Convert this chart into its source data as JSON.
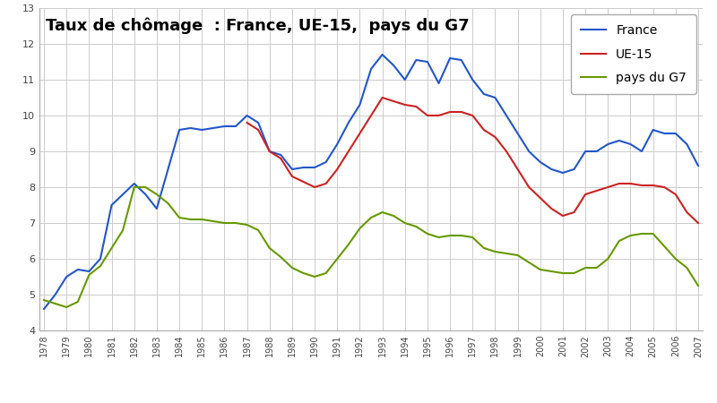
{
  "title": "Taux de chômage  : France, UE-15,  pays du G7",
  "years": [
    1978,
    1978.5,
    1979,
    1979.5,
    1980,
    1980.5,
    1981,
    1981.5,
    1982,
    1982.5,
    1983,
    1983.5,
    1984,
    1984.5,
    1985,
    1985.5,
    1986,
    1986.5,
    1987,
    1987.5,
    1988,
    1988.5,
    1989,
    1989.5,
    1990,
    1990.5,
    1991,
    1991.5,
    1992,
    1992.5,
    1993,
    1993.5,
    1994,
    1994.5,
    1995,
    1995.5,
    1996,
    1996.5,
    1997,
    1997.5,
    1998,
    1998.5,
    1999,
    1999.5,
    2000,
    2000.5,
    2001,
    2001.5,
    2002,
    2002.5,
    2003,
    2003.5,
    2004,
    2004.5,
    2005,
    2005.5,
    2006,
    2006.5,
    2007
  ],
  "france": [
    4.6,
    5.0,
    5.5,
    5.7,
    5.65,
    6.0,
    7.5,
    7.8,
    8.1,
    7.8,
    7.4,
    8.5,
    9.6,
    9.65,
    9.6,
    9.65,
    9.7,
    9.7,
    10.0,
    9.8,
    9.0,
    8.9,
    8.5,
    8.55,
    8.55,
    8.7,
    9.2,
    9.8,
    10.3,
    11.3,
    11.7,
    11.4,
    11.0,
    11.55,
    11.5,
    10.9,
    11.6,
    11.55,
    11.0,
    10.6,
    10.5,
    10.0,
    9.5,
    9.0,
    8.7,
    8.5,
    8.4,
    8.5,
    9.0,
    9.0,
    9.2,
    9.3,
    9.2,
    9.0,
    9.6,
    9.5,
    9.5,
    9.2,
    8.6
  ],
  "ue15": [
    null,
    null,
    null,
    null,
    null,
    null,
    null,
    null,
    null,
    null,
    null,
    null,
    null,
    null,
    null,
    null,
    null,
    null,
    9.8,
    9.6,
    9.0,
    8.8,
    8.3,
    8.15,
    8.0,
    8.1,
    8.5,
    9.0,
    9.5,
    10.0,
    10.5,
    10.4,
    10.3,
    10.25,
    10.0,
    10.0,
    10.1,
    10.1,
    10.0,
    9.6,
    9.4,
    9.0,
    8.5,
    8.0,
    7.7,
    7.4,
    7.2,
    7.3,
    7.8,
    7.9,
    8.0,
    8.1,
    8.1,
    8.05,
    8.05,
    8.0,
    7.8,
    7.3,
    7.0
  ],
  "g7": [
    4.85,
    4.75,
    4.65,
    4.8,
    5.55,
    5.8,
    6.3,
    6.8,
    8.0,
    8.0,
    7.8,
    7.55,
    7.15,
    7.1,
    7.1,
    7.05,
    7.0,
    7.0,
    6.95,
    6.8,
    6.3,
    6.05,
    5.75,
    5.6,
    5.5,
    5.6,
    6.0,
    6.4,
    6.85,
    7.15,
    7.3,
    7.2,
    7.0,
    6.9,
    6.7,
    6.6,
    6.65,
    6.65,
    6.6,
    6.3,
    6.2,
    6.15,
    6.1,
    5.9,
    5.7,
    5.65,
    5.6,
    5.6,
    5.75,
    5.75,
    6.0,
    6.5,
    6.65,
    6.7,
    6.7,
    6.35,
    6.0,
    5.75,
    5.25
  ],
  "france_color": "#2255cc",
  "ue15_color": "#cc2222",
  "g7_color": "#669900",
  "ylim": [
    4,
    13
  ],
  "xlim": [
    1978,
    2007
  ],
  "yticks": [
    4,
    5,
    6,
    7,
    8,
    9,
    10,
    11,
    12,
    13
  ],
  "xtick_years": [
    1978,
    1979,
    1980,
    1981,
    1982,
    1983,
    1984,
    1985,
    1986,
    1987,
    1988,
    1989,
    1990,
    1991,
    1992,
    1993,
    1994,
    1995,
    1996,
    1997,
    1998,
    1999,
    2000,
    2001,
    2002,
    2003,
    2004,
    2005,
    2006,
    2007
  ],
  "background_color": "#ffffff",
  "grid_color": "#cccccc",
  "legend_france": "France",
  "legend_ue15": "UE-15",
  "legend_g7": "pays du G7",
  "title_fontsize": 13,
  "tick_fontsize": 7,
  "ytick_fontsize": 8,
  "legend_fontsize": 10
}
